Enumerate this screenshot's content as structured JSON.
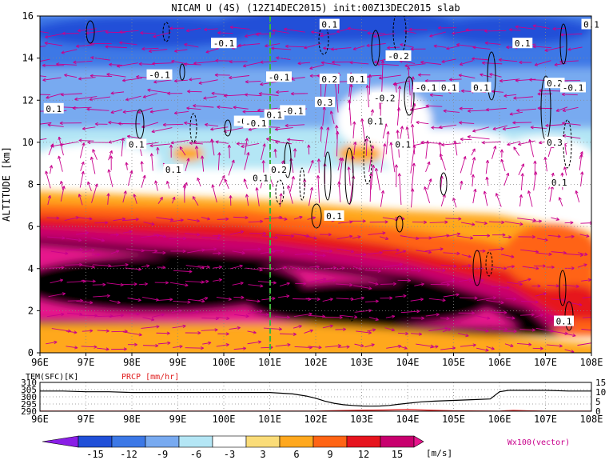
{
  "title": "NICAM U (4S) (12Z14DEC2015) init:00Z13DEC2015 slab",
  "colors": {
    "cbar": [
      "#8a1ee6",
      "#2050d8",
      "#3c78e6",
      "#78aaf0",
      "#b4e6f5",
      "#ffffff",
      "#fadc78",
      "#ffa81e",
      "#ff6414",
      "#e6141e",
      "#c8006e",
      "#e6148c"
    ],
    "vector": "#c8008c",
    "precip": "#e02020",
    "midline": "#3cb43c"
  },
  "chart_data": [
    {
      "type": "heatmap",
      "title": "NICAM U (4S) (12Z14DEC2015) init:00Z13DEC2015 slab",
      "ylabel": "ALTITUDE [km]",
      "xlim": [
        96,
        108
      ],
      "ylim": [
        0,
        16
      ],
      "x_ticks": [
        "96E",
        "97E",
        "98E",
        "99E",
        "100E",
        "101E",
        "102E",
        "103E",
        "104E",
        "105E",
        "106E",
        "107E",
        "108E"
      ],
      "y_ticks": [
        "0",
        "2",
        "4",
        "6",
        "8",
        "10",
        "12",
        "14",
        "16"
      ],
      "grid": true,
      "colorbar": {
        "levels": [
          "-15",
          "-12",
          "-9",
          "-6",
          "-3",
          "3",
          "6",
          "9",
          "12",
          "15"
        ],
        "unit": "[m/s]"
      },
      "vector_label": "Wx100(vector)",
      "contour_labels": [
        {
          "text": "0.1",
          "x": 102.3,
          "y": 15.6
        },
        {
          "text": "0.1",
          "x": 108.0,
          "y": 15.6
        },
        {
          "text": "-0.1",
          "x": 100.0,
          "y": 14.7
        },
        {
          "text": "0.1",
          "x": 106.5,
          "y": 14.7
        },
        {
          "text": "-0.2",
          "x": 103.8,
          "y": 14.1
        },
        {
          "text": "-0.1",
          "x": 98.6,
          "y": 13.2
        },
        {
          "text": "-0.1",
          "x": 101.2,
          "y": 13.1
        },
        {
          "text": "0.2",
          "x": 102.3,
          "y": 13.0
        },
        {
          "text": "0.1",
          "x": 102.9,
          "y": 13.0
        },
        {
          "text": "0.1",
          "x": 104.9,
          "y": 12.6
        },
        {
          "text": "0.1",
          "x": 105.6,
          "y": 12.6
        },
        {
          "text": "0.2",
          "x": 107.2,
          "y": 12.8
        },
        {
          "text": "-0.1",
          "x": 107.6,
          "y": 12.6
        },
        {
          "text": "0.1",
          "x": 96.3,
          "y": 11.6
        },
        {
          "text": "-0.2",
          "x": 103.5,
          "y": 12.1
        },
        {
          "text": "0.3",
          "x": 102.2,
          "y": 11.9
        },
        {
          "text": "-0.1",
          "x": 104.4,
          "y": 12.6
        },
        {
          "text": "-0.1",
          "x": 101.5,
          "y": 11.5
        },
        {
          "text": "0.1",
          "x": 101.1,
          "y": 11.3
        },
        {
          "text": "-0.1",
          "x": 100.5,
          "y": 11.0
        },
        {
          "text": "0.1",
          "x": 103.3,
          "y": 11.0
        },
        {
          "text": "-0.1",
          "x": 100.7,
          "y": 10.9
        },
        {
          "text": "0.1",
          "x": 98.1,
          "y": 9.9
        },
        {
          "text": "0.1",
          "x": 103.9,
          "y": 9.9
        },
        {
          "text": "0.3",
          "x": 107.2,
          "y": 10.0
        },
        {
          "text": "0.1",
          "x": 98.9,
          "y": 8.7
        },
        {
          "text": "0.2",
          "x": 101.2,
          "y": 8.7
        },
        {
          "text": "0.1",
          "x": 100.8,
          "y": 8.3
        },
        {
          "text": "0.1",
          "x": 107.3,
          "y": 8.1
        },
        {
          "text": "0.1",
          "x": 102.4,
          "y": 6.5
        },
        {
          "text": "0.1",
          "x": 107.4,
          "y": 1.5
        }
      ]
    },
    {
      "type": "line",
      "title": "",
      "left_axis_label": "TEM(SFC)[K]",
      "right_axis_label": "PRCP [mm/hr]",
      "left_ticks": [
        "290",
        "295",
        "300",
        "305",
        "310"
      ],
      "right_ticks": [
        "0",
        "5",
        "10",
        "15"
      ],
      "left_ylim": [
        290,
        310
      ],
      "right_ylim": [
        0,
        15
      ],
      "xlim": [
        96,
        108
      ],
      "x_ticks": [
        "96E",
        "97E",
        "98E",
        "99E",
        "100E",
        "101E",
        "102E",
        "103E",
        "104E",
        "105E",
        "106E",
        "107E",
        "108E"
      ],
      "series": [
        {
          "name": "TEM(SFC)[K]",
          "x": [
            96,
            96.5,
            97,
            97.5,
            98,
            98.5,
            99,
            99.5,
            100,
            100.5,
            101,
            101.5,
            101.8,
            102.0,
            102.2,
            102.4,
            102.6,
            102.8,
            103.0,
            103.2,
            103.4,
            103.6,
            103.8,
            104.0,
            104.3,
            104.6,
            105.0,
            105.4,
            105.8,
            106.0,
            106.2,
            106.6,
            107,
            107.5,
            108
          ],
          "values": [
            304,
            304,
            303.5,
            303.5,
            303,
            303,
            303,
            303,
            303,
            303,
            303,
            302,
            300.5,
            299,
            297,
            295.5,
            294.5,
            294,
            293.6,
            293.5,
            293.6,
            294,
            294.8,
            295.5,
            296.5,
            297,
            297.5,
            298,
            298.5,
            303.5,
            304.5,
            304.5,
            304.5,
            304,
            304
          ]
        },
        {
          "name": "PRCP [mm/hr]",
          "x": [
            96,
            102,
            102.5,
            103,
            103.5,
            104,
            104.5,
            105,
            106,
            106.3,
            106.6,
            107,
            108
          ],
          "values": [
            0,
            0,
            0.3,
            0.5,
            0.6,
            0.8,
            0.5,
            0.2,
            0,
            0.4,
            0.2,
            0,
            0
          ]
        }
      ]
    }
  ]
}
